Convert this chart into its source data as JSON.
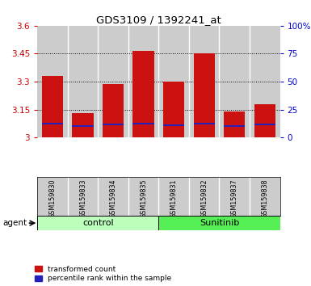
{
  "title": "GDS3109 / 1392241_at",
  "samples": [
    "GSM159830",
    "GSM159833",
    "GSM159834",
    "GSM159835",
    "GSM159831",
    "GSM159832",
    "GSM159837",
    "GSM159838"
  ],
  "groups": [
    "control",
    "control",
    "control",
    "control",
    "Sunitinib",
    "Sunitinib",
    "Sunitinib",
    "Sunitinib"
  ],
  "group_labels": [
    "control",
    "Sunitinib"
  ],
  "group_colors_light": "#bbffbb",
  "group_colors_dark": "#55ee55",
  "red_values": [
    3.33,
    3.13,
    3.285,
    3.465,
    3.3,
    3.45,
    3.14,
    3.18
  ],
  "blue_values": [
    3.075,
    3.06,
    3.07,
    3.075,
    3.065,
    3.075,
    3.06,
    3.07
  ],
  "bar_base": 3.0,
  "ylim_left": [
    3.0,
    3.6
  ],
  "ylim_right": [
    0,
    100
  ],
  "yticks_left": [
    3.0,
    3.15,
    3.3,
    3.45,
    3.6
  ],
  "ytick_labels_left": [
    "3",
    "3.15",
    "3.3",
    "3.45",
    "3.6"
  ],
  "yticks_right": [
    0,
    25,
    50,
    75,
    100
  ],
  "ytick_labels_right": [
    "0",
    "25",
    "50",
    "75",
    "100%"
  ],
  "left_tick_color": "#cc0000",
  "right_tick_color": "#0000cc",
  "bar_color_red": "#cc1111",
  "bar_color_blue": "#2222bb",
  "bar_width": 0.7,
  "plot_bg": "white",
  "bar_bg": "#cccccc",
  "agent_label": "agent",
  "legend_entries": [
    "transformed count",
    "percentile rank within the sample"
  ],
  "grid_yticks": [
    3.15,
    3.3,
    3.45
  ]
}
